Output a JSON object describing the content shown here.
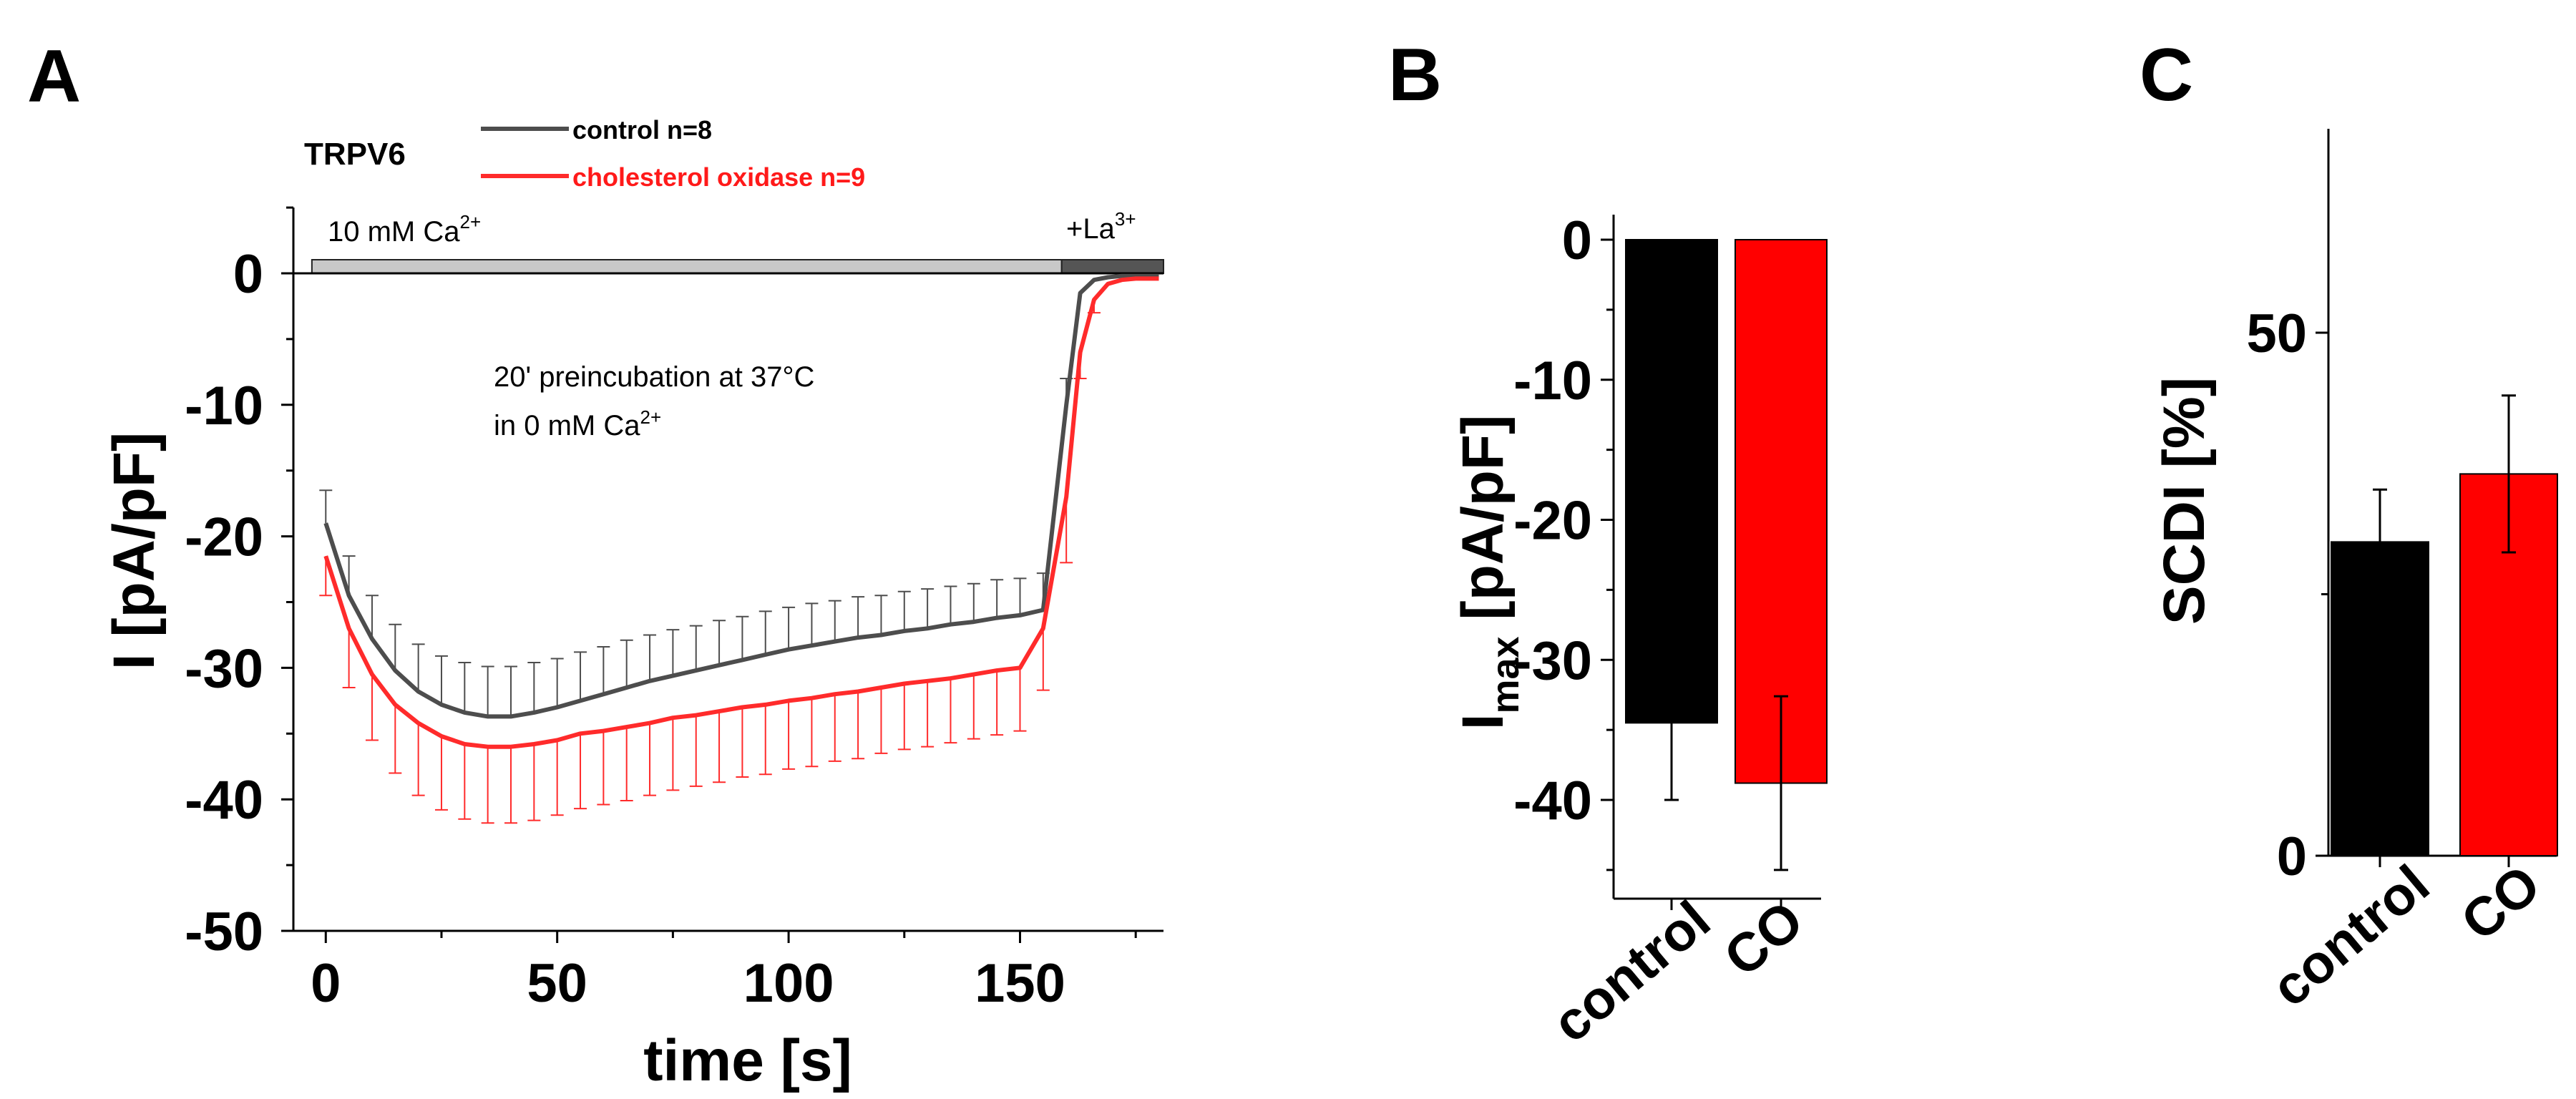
{
  "chart_data": [
    {
      "panel": "A",
      "type": "line",
      "label": "TRPV6",
      "xlabel": "time [s]",
      "ylabel": "I [pA/pF]",
      "xlim": [
        -7,
        181
      ],
      "ylim": [
        -50,
        5
      ],
      "xticks": [
        0,
        50,
        100,
        150
      ],
      "yticks": [
        0,
        -10,
        -20,
        -30,
        -40,
        -50
      ],
      "bars": [
        {
          "label_main": "10 mM Ca",
          "label_sup": "2+",
          "x_start": -3,
          "x_end": 159,
          "color": "#c8c8c8"
        },
        {
          "label_main": "+La",
          "label_sup": "3+",
          "x_start": 159,
          "x_end": 181,
          "color": "#555555"
        }
      ],
      "annotation": [
        "20' preincubation at 37°C",
        "in 0 mM Ca",
        "2+"
      ],
      "series": [
        {
          "name": "control n=8",
          "color": "#4d4d4d",
          "x": [
            0,
            5,
            10,
            15,
            20,
            25,
            30,
            35,
            40,
            45,
            50,
            55,
            60,
            65,
            70,
            75,
            80,
            85,
            90,
            95,
            100,
            105,
            110,
            115,
            120,
            125,
            130,
            135,
            140,
            145,
            150,
            155,
            160,
            163,
            166,
            169,
            172,
            175,
            180
          ],
          "values": [
            -19,
            -24.5,
            -27.8,
            -30.2,
            -31.8,
            -32.8,
            -33.4,
            -33.7,
            -33.7,
            -33.4,
            -33,
            -32.5,
            -32,
            -31.5,
            -31,
            -30.6,
            -30.2,
            -29.8,
            -29.4,
            -29,
            -28.6,
            -28.3,
            -28,
            -27.7,
            -27.5,
            -27.2,
            -27,
            -26.7,
            -26.5,
            -26.2,
            -26,
            -25.6,
            -10,
            -1.5,
            -0.5,
            -0.3,
            -0.2,
            -0.2,
            -0.2
          ],
          "error_upper": [
            2.5,
            3,
            3.3,
            3.5,
            3.6,
            3.7,
            3.8,
            3.8,
            3.8,
            3.8,
            3.7,
            3.7,
            3.6,
            3.6,
            3.5,
            3.5,
            3.4,
            3.4,
            3.3,
            3.3,
            3.2,
            3.2,
            3.1,
            3.1,
            3.0,
            3.0,
            3.0,
            2.9,
            2.9,
            2.9,
            2.8,
            2.8,
            2,
            0.5,
            0.3,
            0.2,
            0.2,
            0.2,
            0.2
          ]
        },
        {
          "name": "cholesterol oxidase n=9",
          "color": "#ff2b2b",
          "x": [
            0,
            5,
            10,
            15,
            20,
            25,
            30,
            35,
            40,
            45,
            50,
            55,
            60,
            65,
            70,
            75,
            80,
            85,
            90,
            95,
            100,
            105,
            110,
            115,
            120,
            125,
            130,
            135,
            140,
            145,
            150,
            155,
            160,
            163,
            166,
            169,
            172,
            175,
            180
          ],
          "values": [
            -21.5,
            -27,
            -30.5,
            -32.8,
            -34.2,
            -35.2,
            -35.8,
            -36,
            -36,
            -35.8,
            -35.5,
            -35,
            -34.8,
            -34.5,
            -34.2,
            -33.8,
            -33.6,
            -33.3,
            -33,
            -32.8,
            -32.5,
            -32.3,
            -32,
            -31.8,
            -31.5,
            -31.2,
            -31,
            -30.8,
            -30.5,
            -30.2,
            -30,
            -27,
            -17,
            -6,
            -2,
            -0.8,
            -0.5,
            -0.4,
            -0.4
          ],
          "error_lower": [
            3,
            4.5,
            5,
            5.2,
            5.5,
            5.6,
            5.7,
            5.8,
            5.8,
            5.8,
            5.7,
            5.7,
            5.6,
            5.6,
            5.5,
            5.5,
            5.4,
            5.4,
            5.3,
            5.3,
            5.2,
            5.2,
            5.1,
            5.1,
            5.0,
            5.0,
            5.0,
            4.9,
            4.9,
            4.9,
            4.8,
            4.7,
            5,
            2,
            1,
            0.5,
            0.3,
            0.3,
            0.3
          ]
        }
      ]
    },
    {
      "panel": "B",
      "type": "bar",
      "ylabel_main": "I",
      "ylabel_sub": "max",
      "ylabel_rest": " [pA/pF]",
      "categories": [
        "control",
        "CO"
      ],
      "values": [
        -34.5,
        -38.8
      ],
      "errors": [
        5.5,
        6.2
      ],
      "colors": [
        "#000000",
        "#ff0000"
      ],
      "ylim": [
        -47,
        0
      ],
      "yticks": [
        0,
        -10,
        -20,
        -30,
        -40
      ]
    },
    {
      "panel": "C",
      "type": "bar",
      "ylabel": "SCDI [%]",
      "categories": [
        "control",
        "CO"
      ],
      "values": [
        30,
        36.5
      ],
      "errors": [
        5,
        7.5
      ],
      "colors": [
        "#000000",
        "#ff0000"
      ],
      "ylim": [
        0,
        70
      ],
      "yticks": [
        0,
        50
      ]
    }
  ]
}
